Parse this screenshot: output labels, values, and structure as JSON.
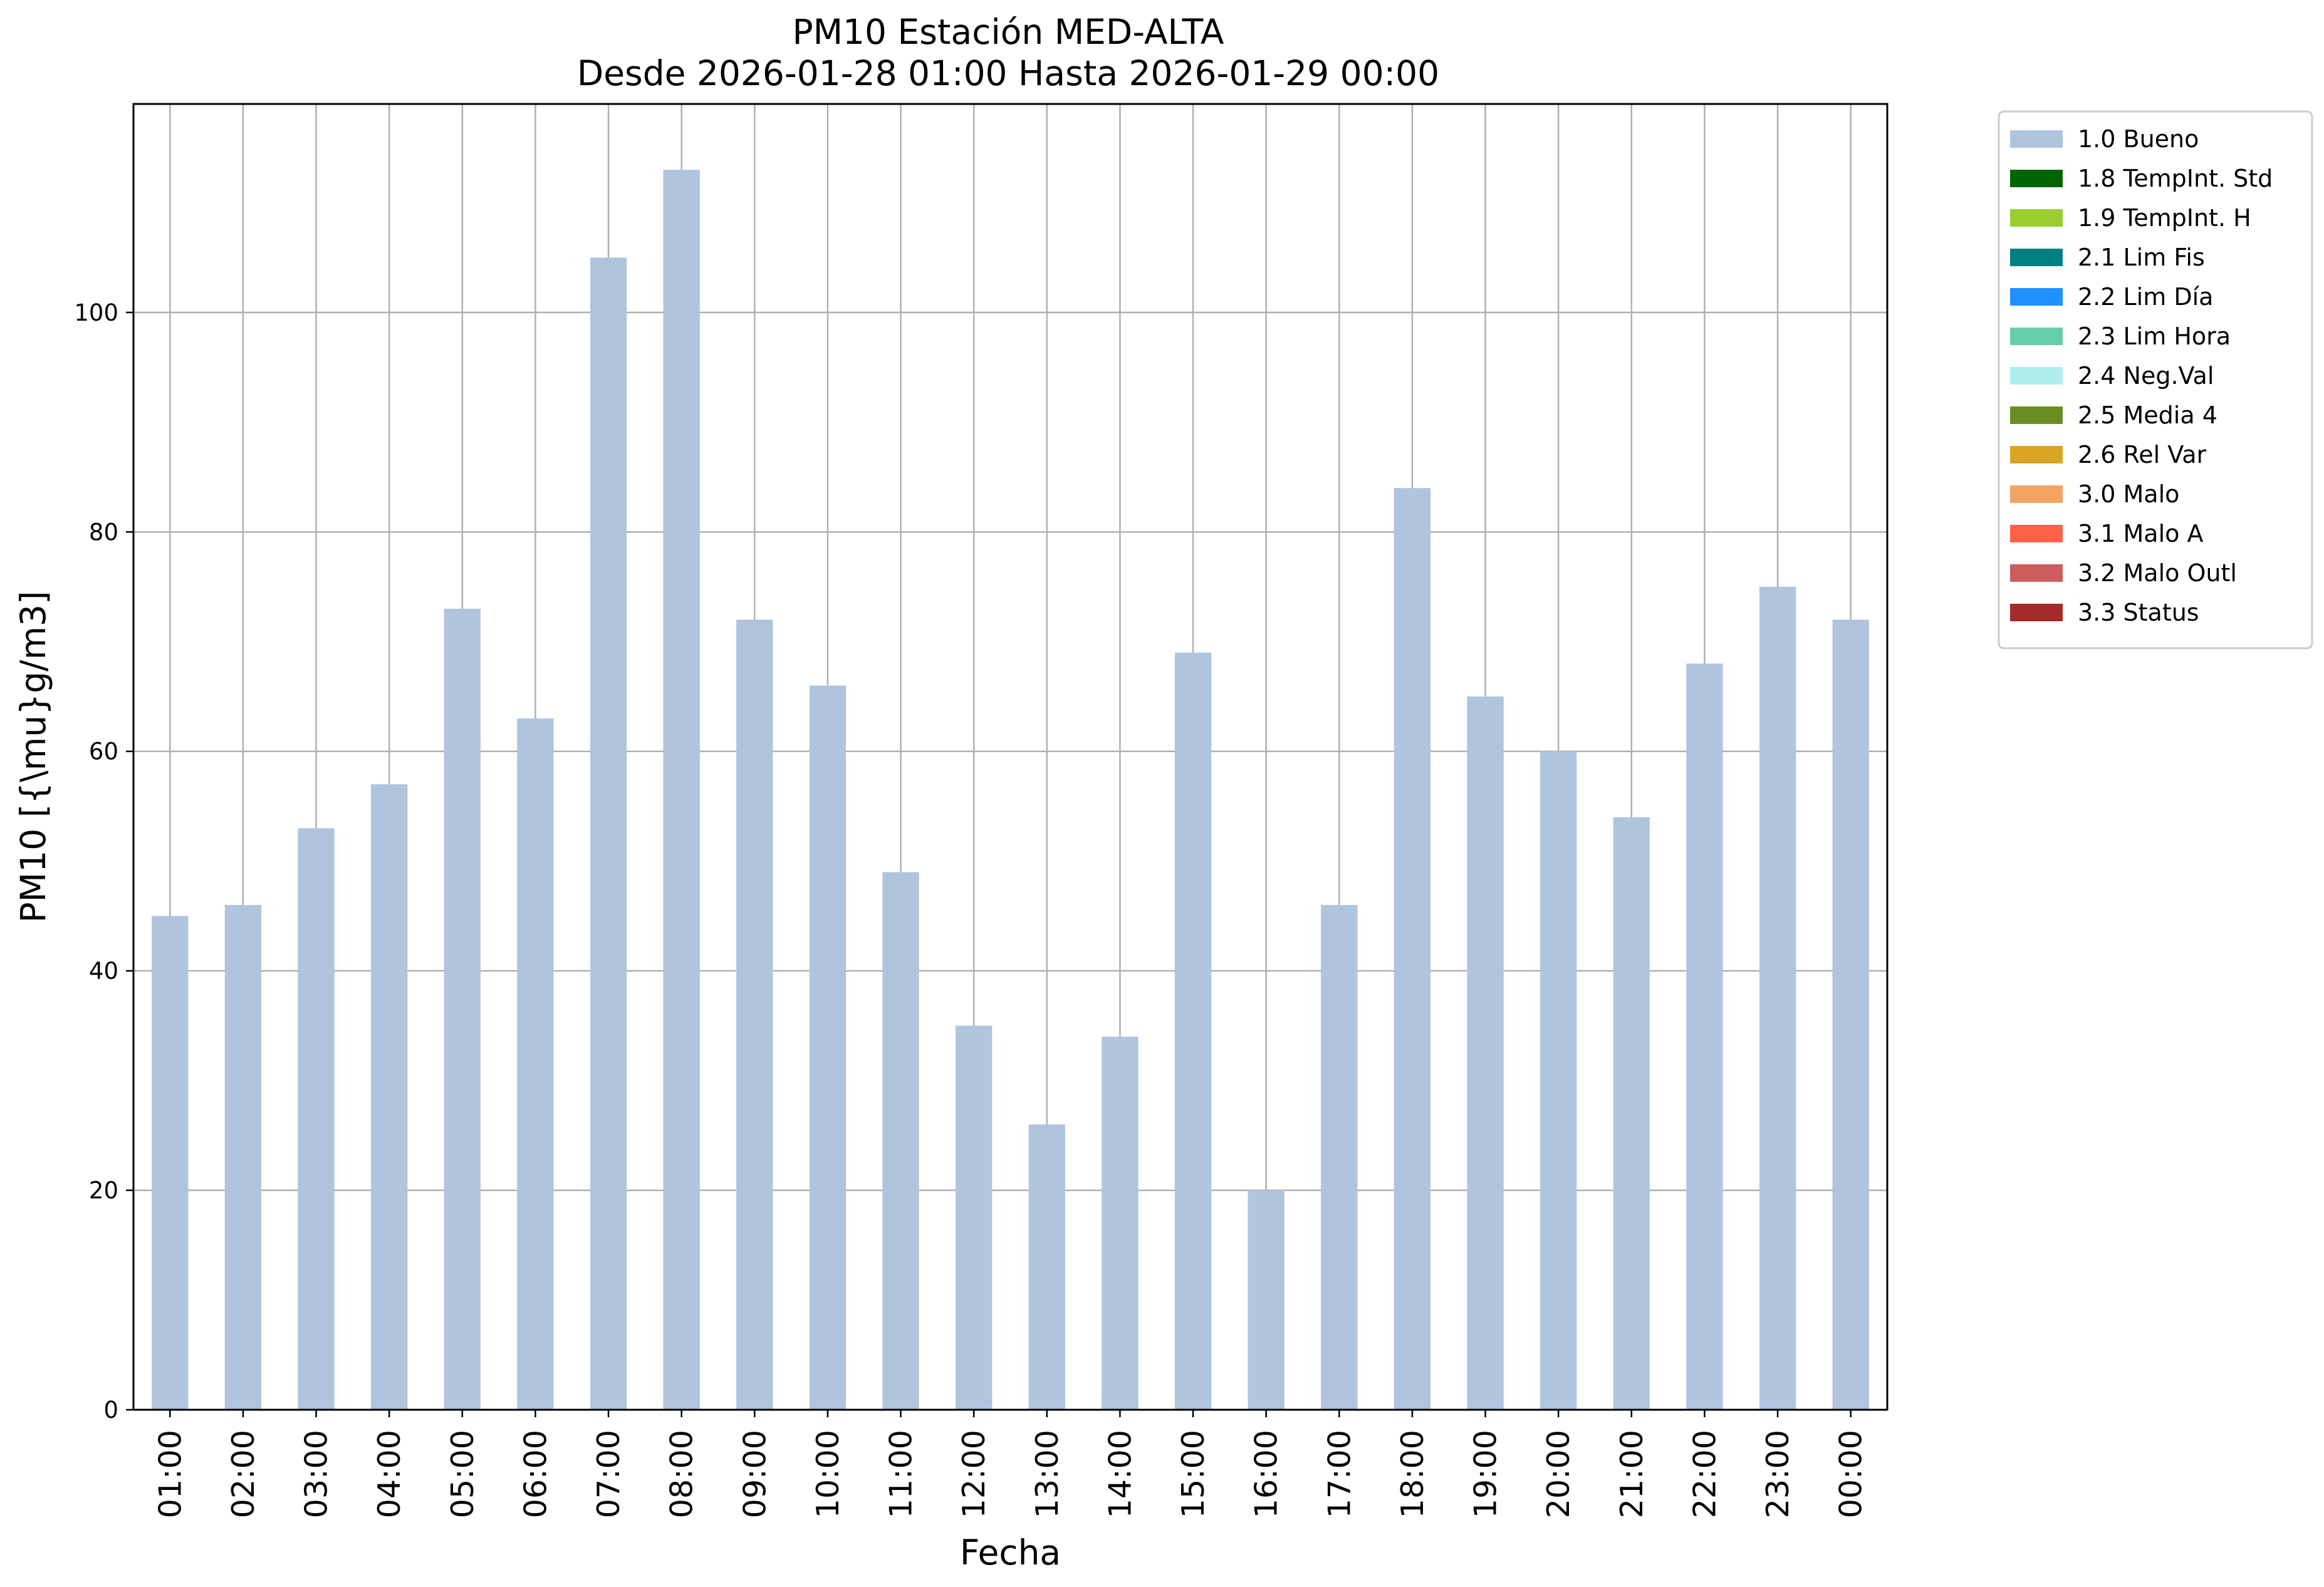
{
  "chart_data": {
    "type": "bar",
    "title": [
      "PM10 Estación MED-ALTA",
      "Desde 2026-01-28 01:00 Hasta 2026-01-29 00:00"
    ],
    "xlabel": "Fecha",
    "ylabel": "PM10 [{\\mu}g/m3]",
    "ylim": [
      0,
      119
    ],
    "yticks": [
      0,
      20,
      40,
      60,
      80,
      100
    ],
    "grid": true,
    "legend_position": "outside-top-right",
    "categories": [
      "01:00",
      "02:00",
      "03:00",
      "04:00",
      "05:00",
      "06:00",
      "07:00",
      "08:00",
      "09:00",
      "10:00",
      "11:00",
      "12:00",
      "13:00",
      "14:00",
      "15:00",
      "16:00",
      "17:00",
      "18:00",
      "19:00",
      "20:00",
      "21:00",
      "22:00",
      "23:00",
      "00:00"
    ],
    "series": [
      {
        "name": "1.0 Bueno",
        "color": "#b0c4de",
        "values": [
          45,
          46,
          53,
          57,
          73,
          63,
          105,
          113,
          72,
          66,
          49,
          35,
          26,
          34,
          69,
          20,
          46,
          84,
          65,
          60,
          54,
          68,
          75,
          72
        ]
      }
    ],
    "legend": [
      {
        "label": "1.0 Bueno",
        "color": "#b0c4de"
      },
      {
        "label": "1.8 TempInt. Std",
        "color": "#006400"
      },
      {
        "label": "1.9 TempInt. H",
        "color": "#9acd32"
      },
      {
        "label": "2.1 Lim Fis",
        "color": "#008080"
      },
      {
        "label": "2.2 Lim Día",
        "color": "#1e90ff"
      },
      {
        "label": "2.3 Lim Hora",
        "color": "#66cdaa"
      },
      {
        "label": "2.4 Neg.Val",
        "color": "#afeeee"
      },
      {
        "label": "2.5 Media 4",
        "color": "#6b8e23"
      },
      {
        "label": "2.6 Rel Var",
        "color": "#daa520"
      },
      {
        "label": "3.0 Malo",
        "color": "#f4a460"
      },
      {
        "label": "3.1 Malo A",
        "color": "#ff6347"
      },
      {
        "label": "3.2 Malo Outl",
        "color": "#cd5c5c"
      },
      {
        "label": "3.3 Status",
        "color": "#a52a2a"
      }
    ]
  }
}
